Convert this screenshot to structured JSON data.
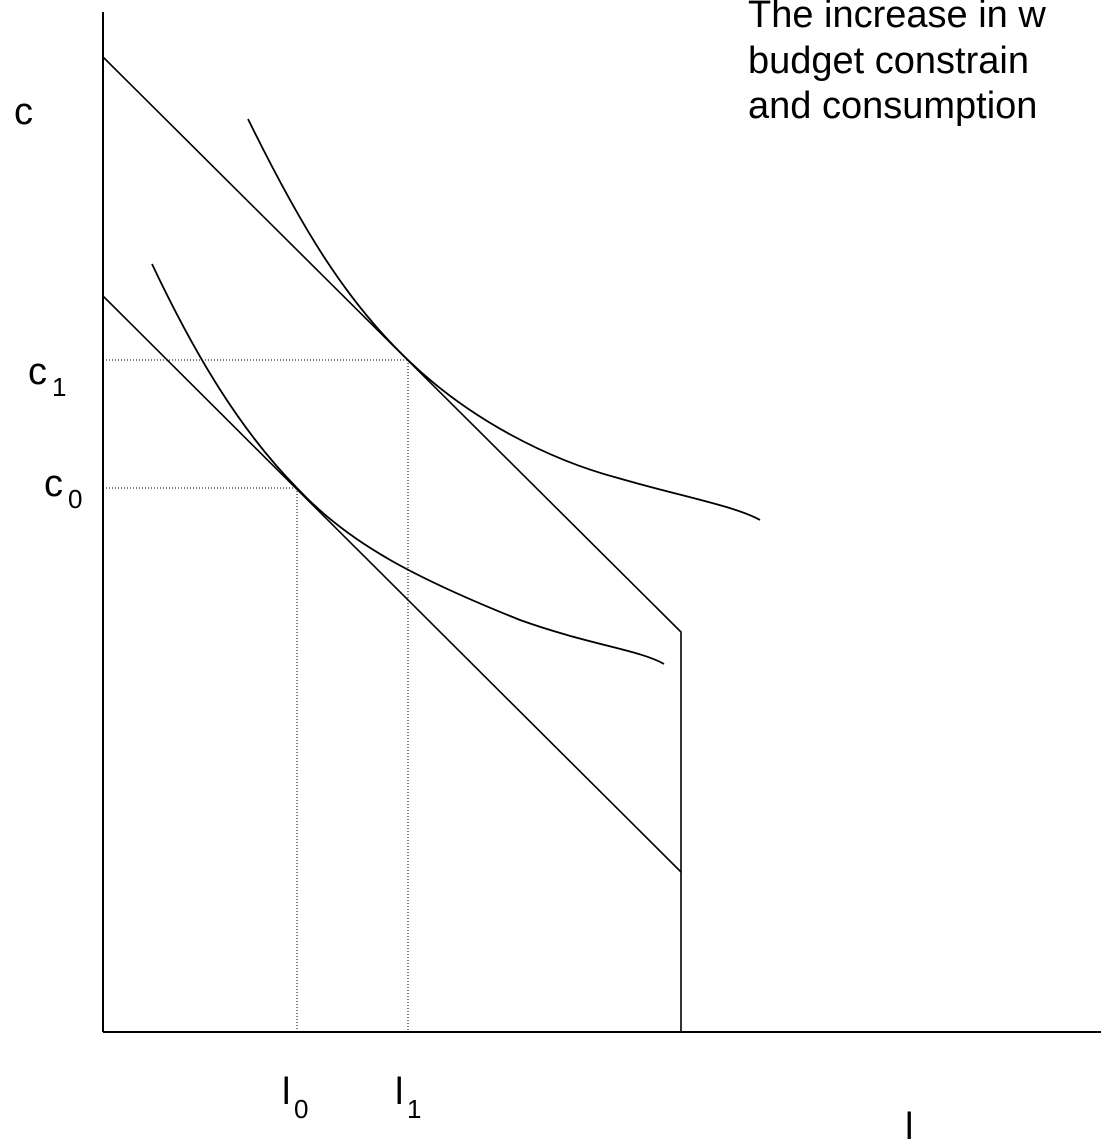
{
  "caption": [
    "The increase in w",
    "budget constrain",
    "and consumption"
  ],
  "labels": {
    "y_axis": "c",
    "x_axis": "l",
    "c1_main": "c",
    "c1_sub": "1",
    "c0_main": "c",
    "c0_sub": "0",
    "l0_main": "l",
    "l0_sub": "0",
    "l1_main": "l",
    "l1_sub": "1"
  }
}
